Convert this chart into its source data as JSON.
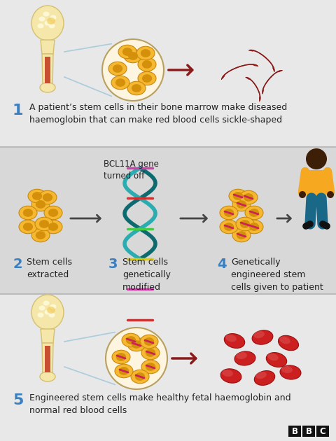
{
  "bg_color": "#e0e0e0",
  "panel1_color": "#e8e8e8",
  "panel2_color": "#d8d8d8",
  "panel3_color": "#e8e8e8",
  "text_color": "#222222",
  "number_color": "#3a7fc1",
  "arrow_dark": "#444444",
  "arrow_red": "#8b1a1a",
  "step1_number": "1",
  "step1_text": "A patient’s stem cells in their bone marrow make diseased\nhaemoglobin that can make red blood cells sickle-shaped",
  "step2_number": "2",
  "step2_text": "Stem cells\nextracted",
  "step3_number": "3",
  "step3_text": "Stem cells\ngenetically\nmodified",
  "step4_number": "4",
  "step4_text": "Genetically\nengineered stem\ncells given to patient",
  "step5_number": "5",
  "step5_text": "Engineered stem cells make healthy fetal haemoglobin and\nnormal red blood cells",
  "bcl_label": "BCL11A gene\nturned off",
  "stem_fc": "#f5b830",
  "stem_ec": "#c88a10",
  "stem_nuc": "#d4900a",
  "bone_fc": "#f5e6aa",
  "bone_ec": "#d4c070",
  "bone_marrow": "#c85030",
  "bone_spot": "#f0c850",
  "sickle_fc": "#aa1515",
  "sickle_ec": "#7a0a0a",
  "rbc_fc": "#cc2020",
  "rbc_ec": "#991010",
  "rbc_hl": "#dd5555",
  "dna_strand1": "#0d6b70",
  "dna_strand2": "#2aacb0",
  "dna_rung1": "#cc44aa",
  "dna_rung2": "#cc3333",
  "dna_rung3": "#44cc44",
  "dna_rung4": "#ddcc00",
  "person_head": "#3d1f08",
  "person_shirt": "#f5a820",
  "person_pants": "#1a6888",
  "person_shoes": "#111111",
  "divider_color": "#bbbbbb",
  "zoom_line_color": "#aaccdd",
  "circle_fc": "#fdf5df",
  "circle_ec": "#b8a060"
}
